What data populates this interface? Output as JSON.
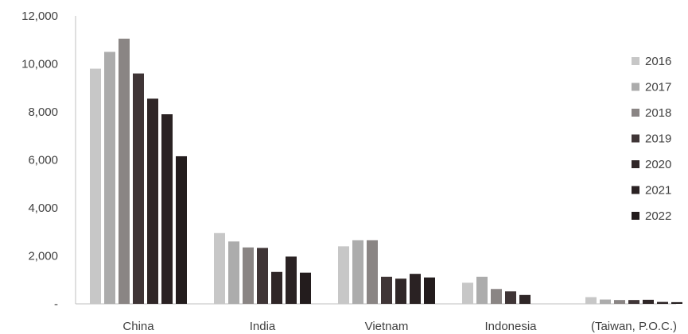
{
  "chart_data": {
    "type": "bar",
    "categories": [
      "China",
      "India",
      "Vietnam",
      "Indonesia",
      "(Taiwan, P.O.C.)"
    ],
    "series": [
      {
        "name": "2016",
        "color": "#c7c7c7",
        "values": [
          9800,
          2950,
          2400,
          880,
          280
        ]
      },
      {
        "name": "2017",
        "color": "#acacac",
        "values": [
          10500,
          2600,
          2650,
          1130,
          180
        ]
      },
      {
        "name": "2018",
        "color": "#8a8584",
        "values": [
          11050,
          2350,
          2650,
          620,
          160
        ]
      },
      {
        "name": "2019",
        "color": "#3f3536",
        "values": [
          9600,
          2330,
          1130,
          520,
          160
        ]
      },
      {
        "name": "2020",
        "color": "#2f2627",
        "values": [
          8550,
          1330,
          1050,
          370,
          170
        ]
      },
      {
        "name": "2021",
        "color": "#2a2223",
        "values": [
          7900,
          1970,
          1250,
          0,
          80
        ]
      },
      {
        "name": "2022",
        "color": "#231c1d",
        "values": [
          6150,
          1300,
          1100,
          0,
          70
        ]
      }
    ],
    "y_ticks": [
      "12,000",
      "10,000",
      "8,000",
      "6,000",
      "4,000",
      "2,000",
      "-"
    ],
    "ylim": [
      0,
      12000
    ],
    "legend_position": "right",
    "grid": false
  }
}
